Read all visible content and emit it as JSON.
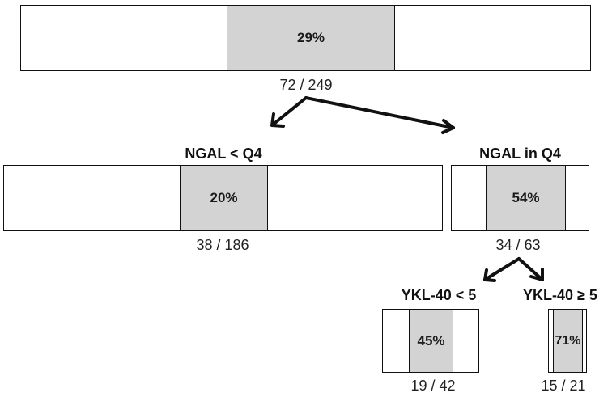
{
  "colors": {
    "fill": "#d3d3d3",
    "border": "#111111",
    "arrow": "#111111"
  },
  "nodes": {
    "root": {
      "percent": "29%",
      "count": "72 / 249",
      "rate": 0.29
    },
    "ngal_low": {
      "label": "NGAL < Q4",
      "percent": "20%",
      "count": "38 / 186",
      "rate": 0.2
    },
    "ngal_high": {
      "label": "NGAL in Q4",
      "percent": "54%",
      "count": "34 / 63",
      "rate": 0.54
    },
    "ykl_low": {
      "label": "YKL-40 < 5",
      "percent": "45%",
      "count": "19 / 42",
      "rate": 0.45
    },
    "ykl_high": {
      "label": "YKL-40 ≥ 5",
      "percent": "71%",
      "count": "15 / 21",
      "rate": 0.71
    }
  }
}
